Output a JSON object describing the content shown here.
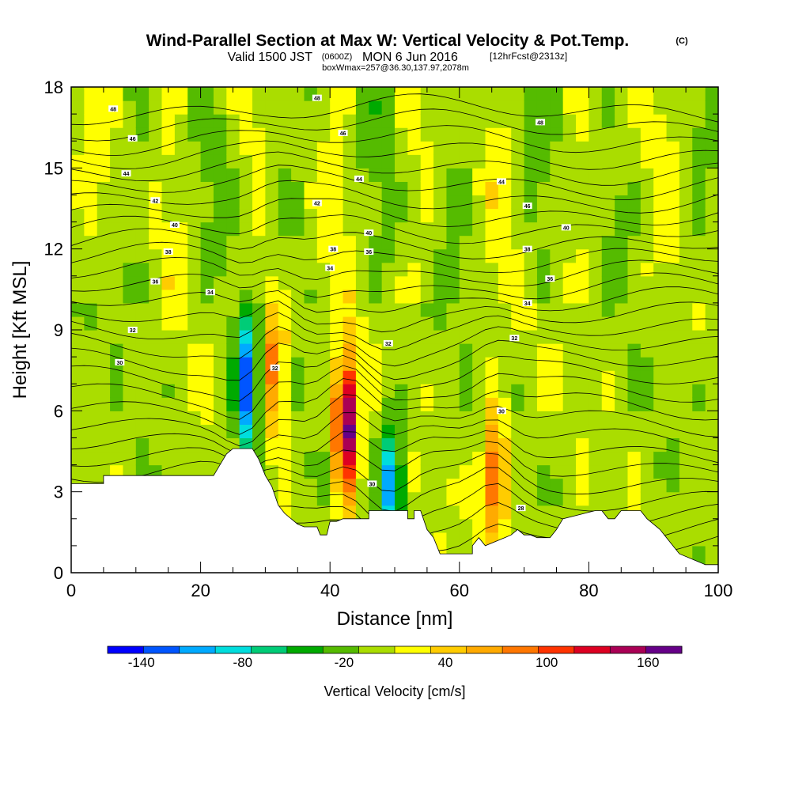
{
  "chart_data": {
    "type": "heatmap",
    "title": "Wind-Parallel Section at Max W: Vertical Velocity & Pot.Temp.",
    "title_mark": "(C)",
    "subtitle": {
      "prefix": "Valid 1500 JST",
      "utc": "(0600Z)",
      "date": "MON 6 Jun 2016",
      "forecast": "[12hrFcst@2313z]"
    },
    "box_info": "boxWmax=257@36.30,137.97,2078m",
    "xlabel": "Distance [nm]",
    "ylabel": "Height [Kft MSL]",
    "xlim": [
      0,
      100
    ],
    "ylim": [
      0,
      18
    ],
    "x_ticks": [
      "0",
      "20",
      "40",
      "60",
      "80",
      "100"
    ],
    "y_ticks": [
      "0",
      "3",
      "6",
      "9",
      "12",
      "15",
      "18"
    ],
    "colorbar": {
      "label": "Vertical Velocity [cm/s]",
      "tick_labels": [
        "-140",
        "-80",
        "-20",
        "40",
        "100",
        "160"
      ],
      "tick_values": [
        -140,
        -80,
        -20,
        40,
        100,
        160
      ],
      "range": [
        -160,
        180
      ],
      "colors": [
        "#0000ff",
        "#0055ff",
        "#00aaff",
        "#00dddd",
        "#00cc77",
        "#00aa00",
        "#55bb00",
        "#aadd00",
        "#ffff00",
        "#ffcc00",
        "#ffaa00",
        "#ff7700",
        "#ff3300",
        "#dd0022",
        "#aa0055",
        "#660088"
      ]
    },
    "features": [
      {
        "kind": "downdraft",
        "x": 27,
        "y": 6.8,
        "peak_w": -140
      },
      {
        "kind": "updraft",
        "x": 31.5,
        "y": 7.8,
        "peak_w": 90
      },
      {
        "kind": "updraft",
        "x": 42.5,
        "y": 5.5,
        "peak_w": 180
      },
      {
        "kind": "downdraft",
        "x": 49.5,
        "y": 3.2,
        "peak_w": -110
      },
      {
        "kind": "updraft",
        "x": 65.5,
        "y": 3.6,
        "peak_w": 110
      }
    ],
    "terrain": [
      [
        0,
        3.3
      ],
      [
        5,
        3.3
      ],
      [
        5,
        3.6
      ],
      [
        20,
        3.6
      ],
      [
        22,
        3.6
      ],
      [
        23,
        4.0
      ],
      [
        24,
        4.4
      ],
      [
        25,
        4.6
      ],
      [
        28,
        4.6
      ],
      [
        29,
        4.2
      ],
      [
        30,
        3.6
      ],
      [
        31,
        3.2
      ],
      [
        32,
        2.5
      ],
      [
        33,
        2.2
      ],
      [
        34,
        2.0
      ],
      [
        35,
        1.8
      ],
      [
        36,
        1.7
      ],
      [
        38,
        1.7
      ],
      [
        38.5,
        1.4
      ],
      [
        39.5,
        1.4
      ],
      [
        40,
        1.9
      ],
      [
        41,
        1.9
      ],
      [
        42,
        2.0
      ],
      [
        46,
        2.0
      ],
      [
        46,
        2.3
      ],
      [
        52,
        2.3
      ],
      [
        52,
        2.0
      ],
      [
        53,
        2.0
      ],
      [
        53,
        2.3
      ],
      [
        54,
        2.3
      ],
      [
        55,
        1.6
      ],
      [
        56,
        1.3
      ],
      [
        57,
        0.7
      ],
      [
        62,
        0.7
      ],
      [
        62,
        1.0
      ],
      [
        63,
        1.3
      ],
      [
        64,
        1.0
      ],
      [
        67,
        1.3
      ],
      [
        68,
        1.4
      ],
      [
        69,
        1.6
      ],
      [
        70,
        1.4
      ],
      [
        71,
        1.4
      ],
      [
        72,
        1.3
      ],
      [
        74,
        1.3
      ],
      [
        75,
        1.6
      ],
      [
        76,
        2.0
      ],
      [
        81,
        2.3
      ],
      [
        82,
        2.3
      ],
      [
        83,
        2.0
      ],
      [
        84,
        2.0
      ],
      [
        85,
        2.3
      ],
      [
        88,
        2.3
      ],
      [
        89,
        2.0
      ],
      [
        91,
        1.6
      ],
      [
        92,
        1.3
      ],
      [
        93,
        1.0
      ],
      [
        94,
        0.7
      ],
      [
        97,
        0.4
      ],
      [
        98,
        0.3
      ],
      [
        100,
        0.3
      ]
    ],
    "isentrope_labels": [
      {
        "text": "48",
        "x": 6.5,
        "y": 17.2
      },
      {
        "text": "48",
        "x": 38,
        "y": 17.6
      },
      {
        "text": "46",
        "x": 9.5,
        "y": 16.1
      },
      {
        "text": "46",
        "x": 42,
        "y": 16.3
      },
      {
        "text": "44",
        "x": 8.5,
        "y": 14.8
      },
      {
        "text": "44",
        "x": 44.5,
        "y": 14.6
      },
      {
        "text": "42",
        "x": 13,
        "y": 13.8
      },
      {
        "text": "42",
        "x": 38,
        "y": 13.7
      },
      {
        "text": "40",
        "x": 16,
        "y": 12.9
      },
      {
        "text": "40",
        "x": 46,
        "y": 12.6
      },
      {
        "text": "38",
        "x": 15,
        "y": 11.9
      },
      {
        "text": "38",
        "x": 40.5,
        "y": 12.0
      },
      {
        "text": "36",
        "x": 46,
        "y": 11.9
      },
      {
        "text": "36",
        "x": 13,
        "y": 10.8
      },
      {
        "text": "34",
        "x": 21.5,
        "y": 10.4
      },
      {
        "text": "34",
        "x": 40,
        "y": 11.3
      },
      {
        "text": "32",
        "x": 9.5,
        "y": 9.0
      },
      {
        "text": "30",
        "x": 7.5,
        "y": 7.8
      },
      {
        "text": "32",
        "x": 49,
        "y": 8.5
      },
      {
        "text": "32",
        "x": 31.5,
        "y": 7.6
      },
      {
        "text": "30",
        "x": 46.5,
        "y": 3.3
      },
      {
        "text": "48",
        "x": 72.5,
        "y": 16.7
      },
      {
        "text": "44",
        "x": 66.5,
        "y": 14.5
      },
      {
        "text": "46",
        "x": 70.5,
        "y": 13.6
      },
      {
        "text": "40",
        "x": 76.5,
        "y": 12.8
      },
      {
        "text": "38",
        "x": 70.5,
        "y": 12.0
      },
      {
        "text": "36",
        "x": 74,
        "y": 10.9
      },
      {
        "text": "34",
        "x": 70.5,
        "y": 10.0
      },
      {
        "text": "32",
        "x": 68.5,
        "y": 8.7
      },
      {
        "text": "30",
        "x": 66.5,
        "y": 6.0
      },
      {
        "text": "28",
        "x": 69.5,
        "y": 2.4
      }
    ]
  }
}
